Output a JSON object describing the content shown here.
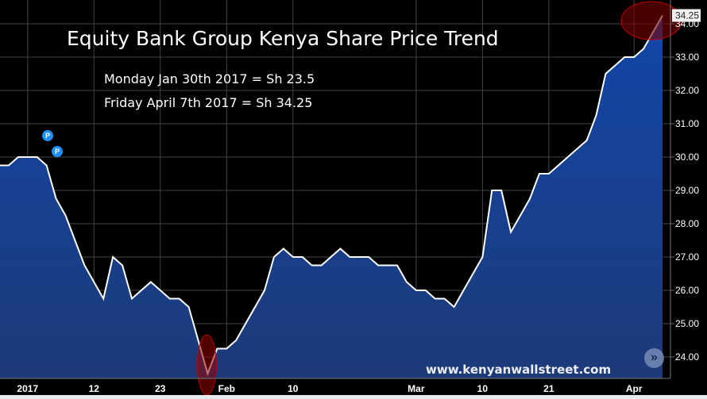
{
  "title": "Equity Bank Group Kenya Share Price Trend",
  "annotations": [
    "Monday Jan 30th 2017 = Sh 23.5",
    "Friday April 7th 2017 = Sh 34.25"
  ],
  "watermark": "www.kenyanwallstreet.com",
  "markers": [
    "P",
    "P"
  ],
  "scroll_button": "»",
  "colors": {
    "fill_top": "#1246a8",
    "fill_bottom": "#1d3a78",
    "line": "#ffffff",
    "highlight": "#c00000",
    "background": "#000000"
  },
  "chart_data": {
    "type": "area",
    "title": "Equity Bank Group Kenya Share Price Trend",
    "xlabel": "",
    "ylabel": "",
    "ylim": [
      23.3,
      34.4
    ],
    "grid": true,
    "y_ticks": [
      "24.00",
      "25.00",
      "26.00",
      "27.00",
      "28.00",
      "29.00",
      "30.00",
      "31.00",
      "32.00",
      "33.00",
      "34.00"
    ],
    "x_ticks": [
      {
        "label": "2017",
        "date": "2017-01-03"
      },
      {
        "label": "12",
        "date": "2017-01-12"
      },
      {
        "label": "23",
        "date": "2017-01-23"
      },
      {
        "label": "Feb",
        "date": "2017-02-01"
      },
      {
        "label": "10",
        "date": "2017-02-10"
      },
      {
        "label": "Mar",
        "date": "2017-03-01"
      },
      {
        "label": "10",
        "date": "2017-03-10"
      },
      {
        "label": "21",
        "date": "2017-03-21"
      },
      {
        "label": "Apr",
        "date": "2017-04-03"
      }
    ],
    "last_price_label": "34.25",
    "highlights": [
      {
        "date": "2017-01-30",
        "value": 23.5
      },
      {
        "date": "2017-04-07",
        "value": 34.25
      }
    ],
    "x": [
      "2016-12-28",
      "2016-12-29",
      "2016-12-30",
      "2017-01-03",
      "2017-01-04",
      "2017-01-05",
      "2017-01-06",
      "2017-01-09",
      "2017-01-10",
      "2017-01-11",
      "2017-01-12",
      "2017-01-13",
      "2017-01-16",
      "2017-01-17",
      "2017-01-18",
      "2017-01-19",
      "2017-01-20",
      "2017-01-23",
      "2017-01-24",
      "2017-01-25",
      "2017-01-26",
      "2017-01-27",
      "2017-01-30",
      "2017-01-31",
      "2017-02-01",
      "2017-02-02",
      "2017-02-03",
      "2017-02-06",
      "2017-02-07",
      "2017-02-08",
      "2017-02-09",
      "2017-02-10",
      "2017-02-13",
      "2017-02-14",
      "2017-02-15",
      "2017-02-16",
      "2017-02-17",
      "2017-02-20",
      "2017-02-21",
      "2017-02-22",
      "2017-02-23",
      "2017-02-24",
      "2017-02-27",
      "2017-02-28",
      "2017-03-01",
      "2017-03-02",
      "2017-03-03",
      "2017-03-06",
      "2017-03-07",
      "2017-03-08",
      "2017-03-09",
      "2017-03-10",
      "2017-03-13",
      "2017-03-14",
      "2017-03-15",
      "2017-03-16",
      "2017-03-17",
      "2017-03-20",
      "2017-03-21",
      "2017-03-22",
      "2017-03-23",
      "2017-03-24",
      "2017-03-27",
      "2017-03-28",
      "2017-03-29",
      "2017-03-30",
      "2017-03-31",
      "2017-04-03",
      "2017-04-04",
      "2017-04-05",
      "2017-04-07"
    ],
    "values": [
      29.75,
      29.75,
      30.0,
      30.0,
      30.0,
      29.75,
      28.75,
      28.25,
      27.5,
      26.75,
      26.25,
      25.75,
      27.0,
      26.75,
      25.75,
      26.0,
      26.25,
      26.0,
      25.75,
      25.75,
      25.5,
      24.5,
      23.5,
      24.25,
      24.25,
      24.5,
      25.0,
      25.5,
      26.0,
      27.0,
      27.25,
      27.0,
      27.0,
      26.75,
      26.75,
      27.0,
      27.25,
      27.0,
      27.0,
      27.0,
      26.75,
      26.75,
      26.75,
      26.25,
      26.0,
      26.0,
      25.75,
      25.75,
      25.5,
      26.0,
      26.5,
      27.0,
      29.0,
      29.0,
      27.75,
      28.25,
      28.75,
      29.5,
      29.5,
      29.75,
      30.0,
      30.25,
      30.5,
      31.25,
      32.5,
      32.75,
      33.0,
      33.0,
      33.25,
      33.75,
      34.25
    ]
  }
}
